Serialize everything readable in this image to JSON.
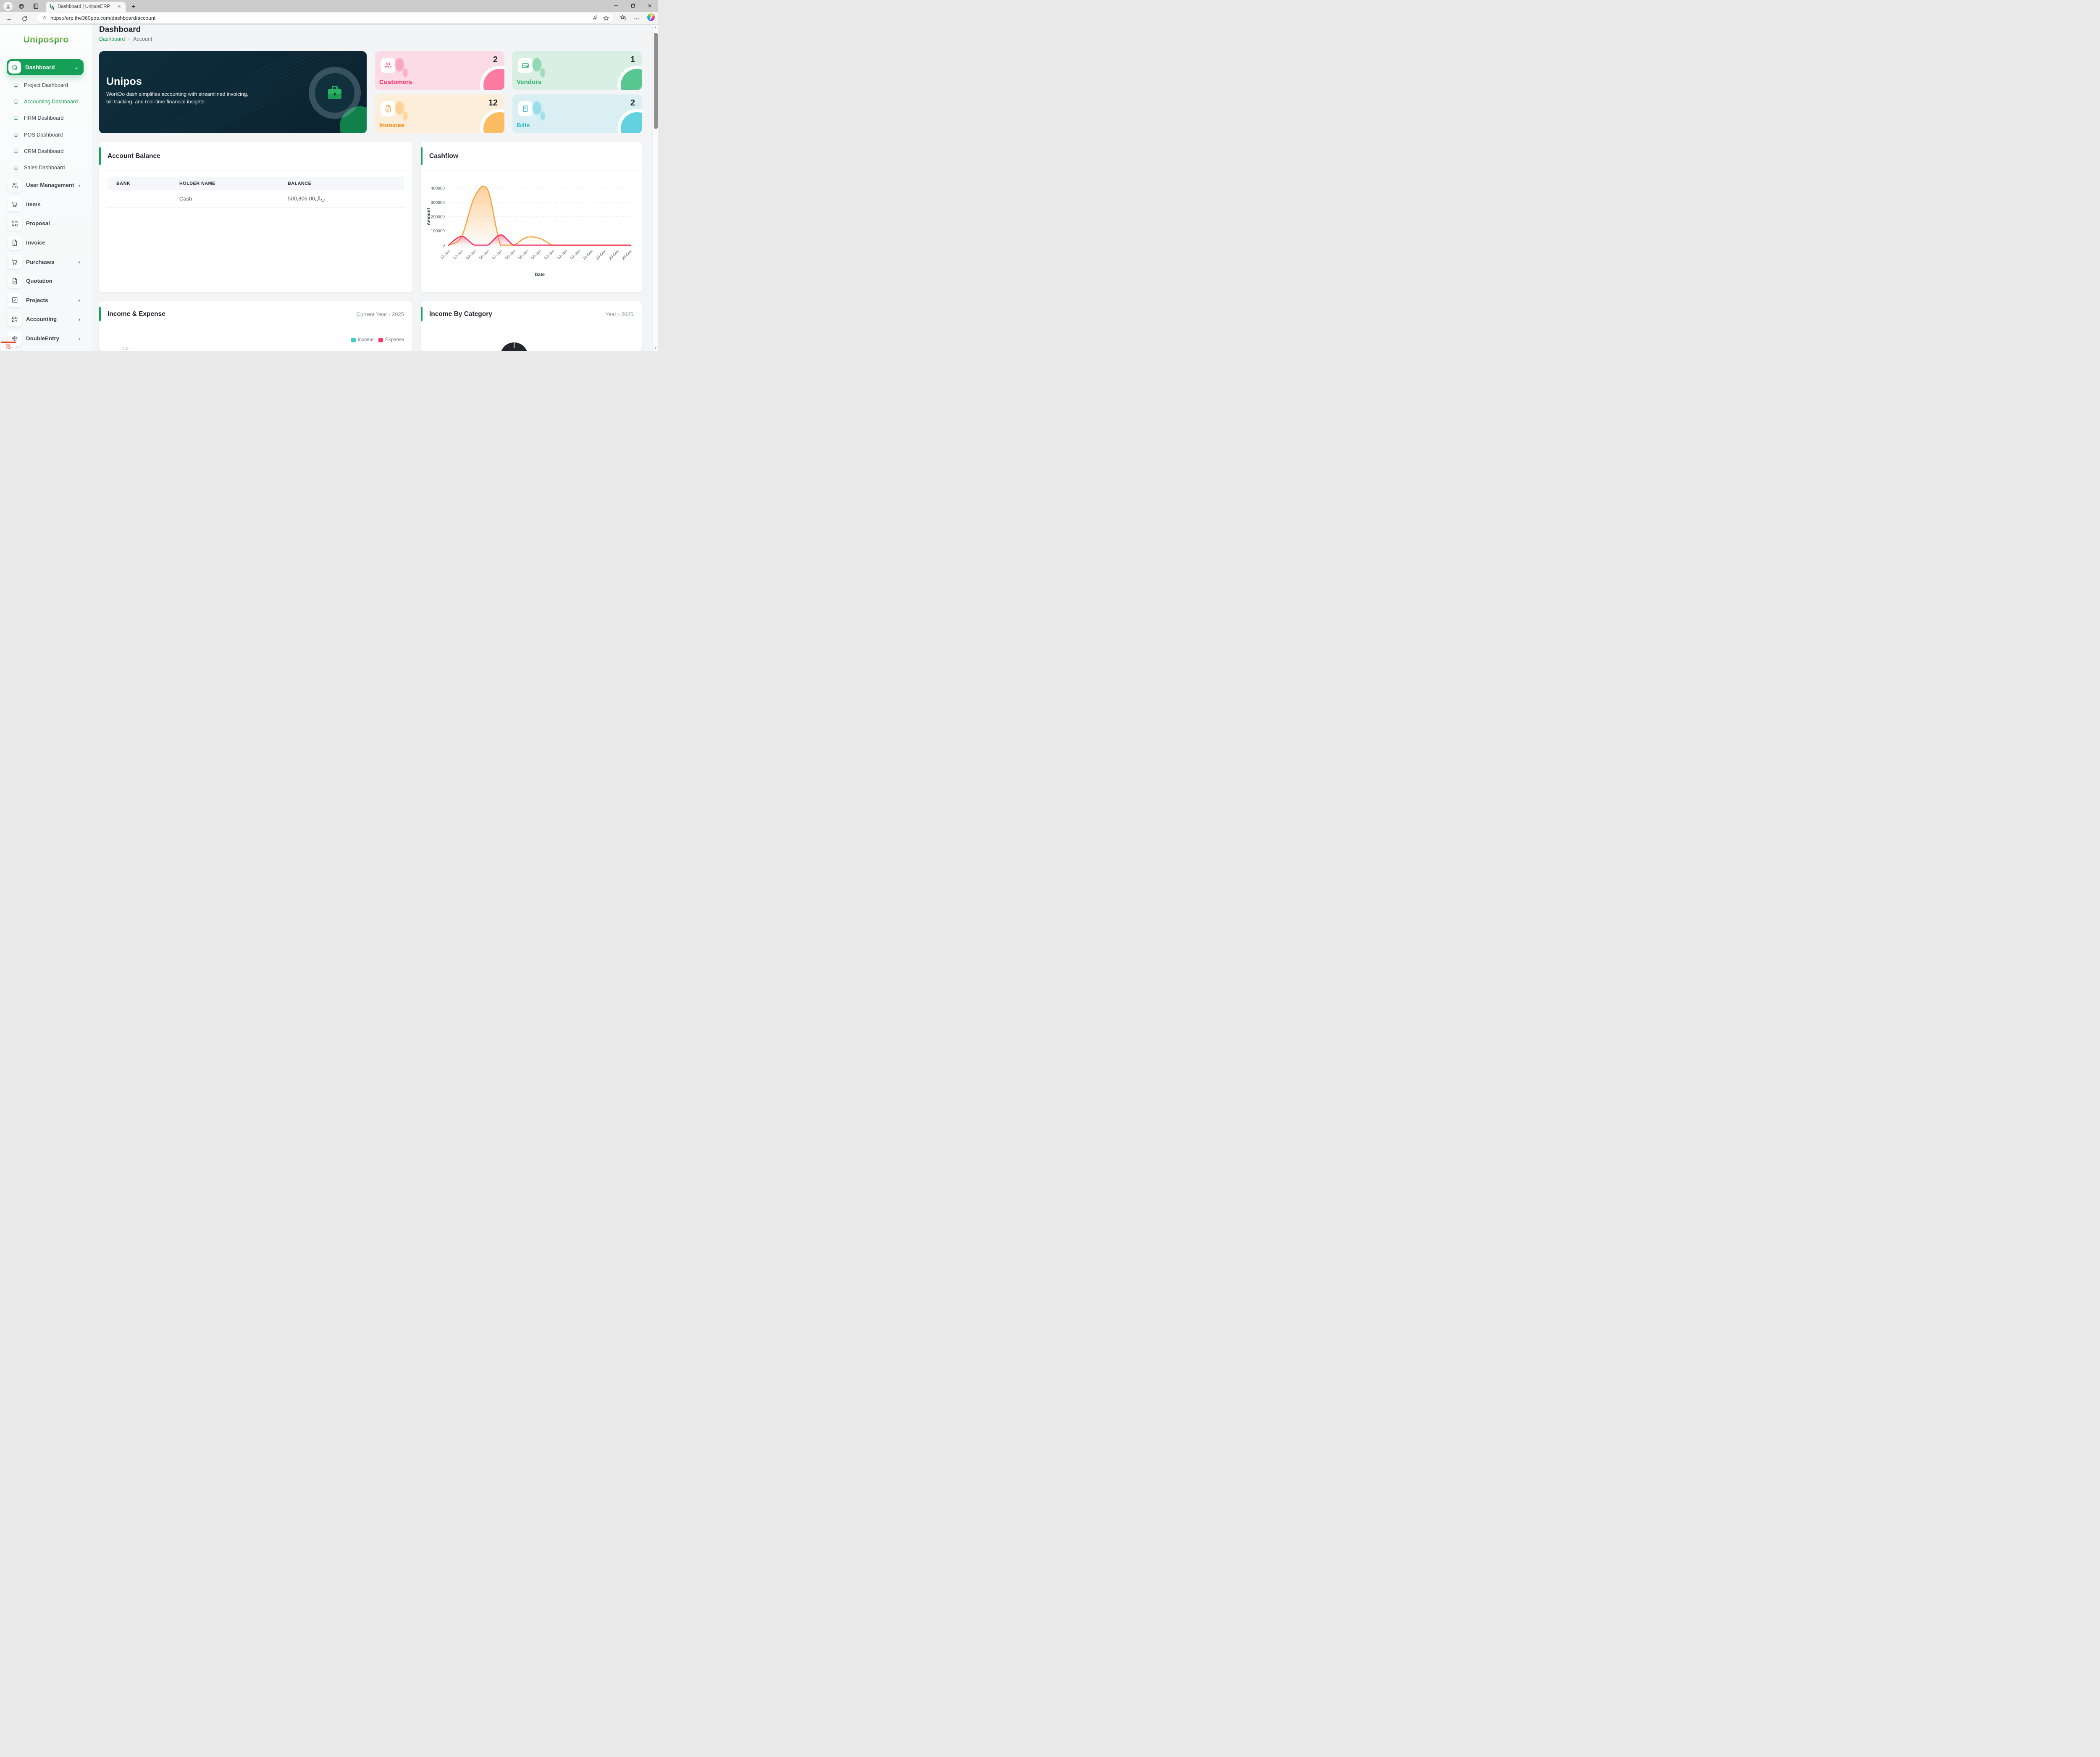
{
  "browser": {
    "tab_title": "Dashboard | UniposERP",
    "url": "https://erp.the360pos.com/dashboard/account"
  },
  "icons": {
    "close": "✕",
    "new_tab": "+",
    "back": "←",
    "ellipsis": "…",
    "chevron_down": "⌄",
    "chevron_right": "›",
    "scroll_up": "▲",
    "scroll_down": "▼",
    "read_aloud": "A",
    "read_aloud_wave": ")"
  },
  "sidebar": {
    "logo": "Unipospro",
    "dashboard": {
      "label": "Dashboard"
    },
    "dashboard_children": [
      {
        "label": "Project Dashboard",
        "active": false
      },
      {
        "label": "Accounting Dashboard",
        "active": true
      },
      {
        "label": "HRM Dashboard",
        "active": false
      },
      {
        "label": "POS Dashboard",
        "active": false
      },
      {
        "label": "CRM Dashboard",
        "active": false
      },
      {
        "label": "Sales Dashboard",
        "active": false
      }
    ],
    "menu": [
      {
        "label": "User Management",
        "icon": "users",
        "chevron": true
      },
      {
        "label": "Items",
        "icon": "cart",
        "chevron": false
      },
      {
        "label": "Proposal",
        "icon": "proposal",
        "chevron": false
      },
      {
        "label": "Invoice",
        "icon": "file",
        "chevron": false
      },
      {
        "label": "Purchases",
        "icon": "cart",
        "chevron": true
      },
      {
        "label": "Quotation",
        "icon": "filecheck",
        "chevron": false
      },
      {
        "label": "Projects",
        "icon": "squarecheck",
        "chevron": true
      },
      {
        "label": "Accounting",
        "icon": "gridplus",
        "chevron": true
      },
      {
        "label": "DoubleEntry",
        "icon": "scale",
        "chevron": true
      }
    ]
  },
  "page": {
    "title": "Dashboard",
    "breadcrumb": {
      "root": "Dashboard",
      "separator": "›",
      "current": "Account"
    }
  },
  "banner": {
    "title": "Unipos",
    "subtitle_line1": "WorkDo dash simplifies accounting with streamlined invoicing,",
    "subtitle_line2": "bill tracking, and real-time financial insights"
  },
  "stats": [
    {
      "label": "Customers",
      "value": "2",
      "bg": "#fbdce6",
      "accent": "#fb2e63",
      "shape": "#fb7ba2"
    },
    {
      "label": "Vendors",
      "value": "1",
      "bg": "#d9efe4",
      "accent": "#2eaf6e",
      "shape": "#57c690"
    },
    {
      "label": "Invoices",
      "value": "12",
      "bg": "#fdeeda",
      "accent": "#f8860d",
      "shape": "#fbbc62"
    },
    {
      "label": "Bills",
      "value": "2",
      "bg": "#d9eff4",
      "accent": "#2fb8c9",
      "shape": "#64d1e0"
    }
  ],
  "account_balance": {
    "title": "Account Balance",
    "columns": [
      "BANK",
      "HOLDER NAME",
      "BALANCE"
    ],
    "rows": [
      {
        "bank": "",
        "holder": "Cash",
        "balance": "500,806.00ريال"
      }
    ]
  },
  "income_expense": {
    "title": "Income & Expense",
    "period": "Current Year - 2025"
  },
  "income_by_category": {
    "title": "Income By Category",
    "period": "Year - 2025"
  },
  "chart_data": [
    {
      "type": "area",
      "title": "Cashflow",
      "x": [
        "11-Jan",
        "10-Jan",
        "09-Jan",
        "08-Jan",
        "07-Jan",
        "06-Jan",
        "05-Jan",
        "04-Jan",
        "03-Jan",
        "02-Jan",
        "01-Jan",
        "31-Dec",
        "30-Dec",
        "29-Dec",
        "28-Dec"
      ],
      "xlabel": "Date",
      "ylabel": "Amount",
      "ylim": [
        0,
        400000
      ],
      "yticks": [
        0,
        100000,
        200000,
        300000,
        400000
      ],
      "grid": "dashed-horizontal",
      "legend_position": "none",
      "series": [
        {
          "name": "Income",
          "color": "#f9a23c",
          "values": [
            0,
            60000,
            340000,
            390000,
            0,
            0,
            55000,
            48000,
            0,
            0,
            0,
            0,
            0,
            0,
            0
          ]
        },
        {
          "name": "Expense",
          "color": "#fb2e63",
          "values": [
            0,
            62000,
            0,
            0,
            72000,
            0,
            0,
            0,
            0,
            0,
            0,
            0,
            0,
            0,
            0
          ]
        }
      ]
    },
    {
      "type": "bar",
      "title": "Income & Expense",
      "legend": [
        {
          "label": "Income",
          "color": "#3fd0c9"
        },
        {
          "label": "Expense",
          "color": "#fb3767"
        }
      ],
      "visible_ytick": "2.0"
    },
    {
      "type": "pie",
      "title": "Income By Category",
      "slices": [
        {
          "value": 100,
          "color": "#23262c"
        }
      ]
    }
  ]
}
